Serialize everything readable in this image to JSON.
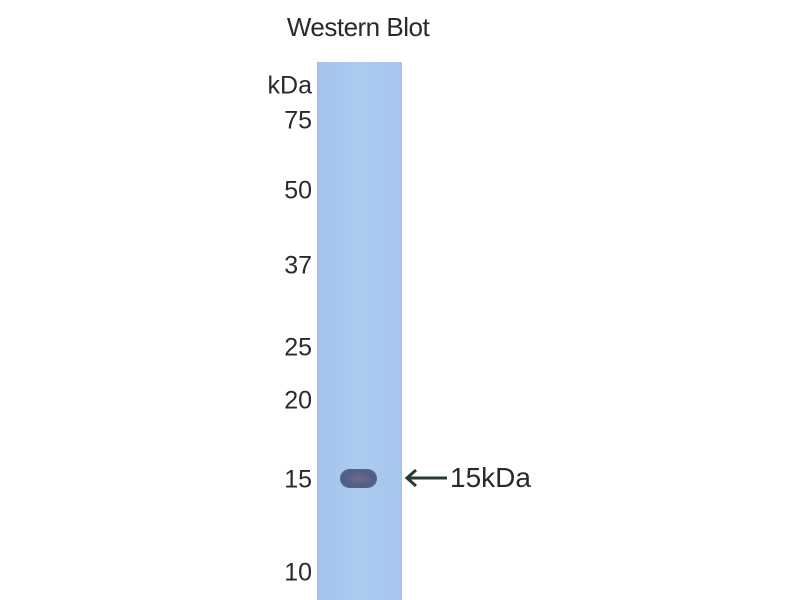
{
  "title": "Western Blot",
  "unit_label": "kDa",
  "markers": [
    "75",
    "50",
    "37",
    "25",
    "20",
    "15",
    "10"
  ],
  "band_annotation": "15kDa",
  "colors": {
    "lane": "#a9c8ee",
    "band": "#55638c",
    "text": "#2a2a2a"
  }
}
